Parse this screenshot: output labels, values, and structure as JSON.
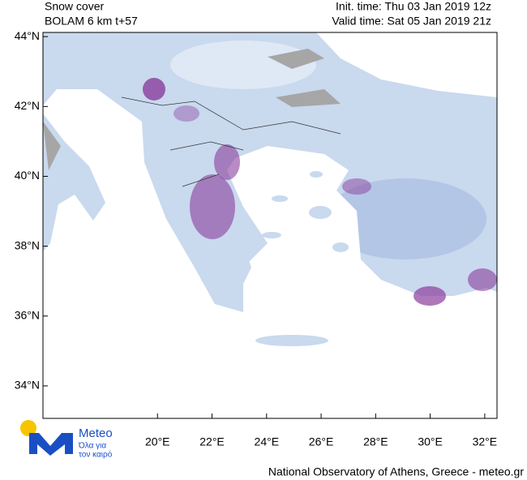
{
  "header": {
    "title": "Snow cover",
    "model": "BOLAM 6 km t+57",
    "init_time": "Init. time: Thu 03 Jan 2019 12z",
    "valid_time": "Valid time: Sat 05 Jan 2019 21z"
  },
  "map": {
    "lon_range": [
      15.8,
      32.45
    ],
    "lat_range": [
      33.07,
      44.12
    ],
    "lon_ticks": [
      {
        "value": 20,
        "label": "20°E"
      },
      {
        "value": 22,
        "label": "22°E"
      },
      {
        "value": 24,
        "label": "24°E"
      },
      {
        "value": 26,
        "label": "26°E"
      },
      {
        "value": 28,
        "label": "28°E"
      },
      {
        "value": 30,
        "label": "30°E"
      },
      {
        "value": 32,
        "label": "32°E"
      }
    ],
    "lat_ticks": [
      {
        "value": 44,
        "label": "44°N"
      },
      {
        "value": 42,
        "label": "42°N"
      },
      {
        "value": 40,
        "label": "40°N"
      },
      {
        "value": 38,
        "label": "38°N"
      },
      {
        "value": 36,
        "label": "36°N"
      },
      {
        "value": 34,
        "label": "34°N"
      }
    ]
  },
  "logo": {
    "name": "Meteo",
    "tagline_1": "Όλα για",
    "tagline_2": "τον καιρό"
  },
  "footer": "National Observatory of Athens, Greece - meteo.gr"
}
